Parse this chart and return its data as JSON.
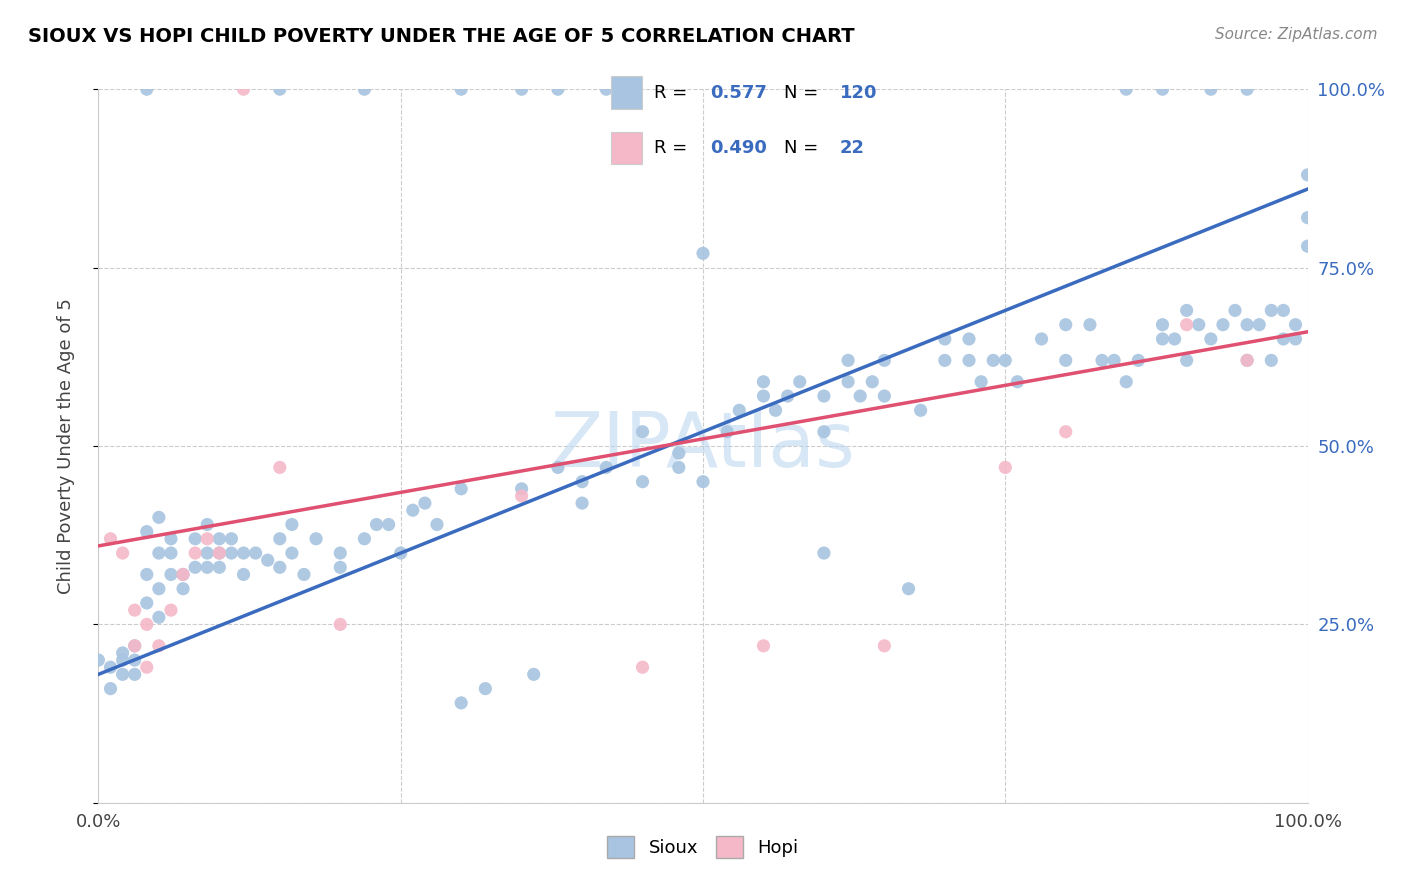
{
  "title": "SIOUX VS HOPI CHILD POVERTY UNDER THE AGE OF 5 CORRELATION CHART",
  "source": "Source: ZipAtlas.com",
  "ylabel": "Child Poverty Under the Age of 5",
  "xlim": [
    0,
    1
  ],
  "ylim": [
    0,
    1
  ],
  "xtick_vals": [
    0.0,
    0.25,
    0.5,
    0.75,
    1.0
  ],
  "ytick_vals": [
    0.0,
    0.25,
    0.5,
    0.75,
    1.0
  ],
  "xticklabels": [
    "0.0%",
    "",
    "",
    "",
    "100.0%"
  ],
  "yticklabels_right": [
    "",
    "25.0%",
    "50.0%",
    "75.0%",
    "100.0%"
  ],
  "sioux_color": "#a8c4e0",
  "hopi_color": "#f4b8c8",
  "sioux_line_color": "#3a6bbf",
  "hopi_line_color": "#e05070",
  "sioux_R": "0.577",
  "sioux_N": "120",
  "hopi_R": "0.490",
  "hopi_N": "22",
  "sioux_intercept": 0.18,
  "sioux_slope": 0.68,
  "hopi_intercept": 0.36,
  "hopi_slope": 0.3,
  "sioux_points": [
    [
      0.0,
      0.2
    ],
    [
      0.01,
      0.19
    ],
    [
      0.01,
      0.16
    ],
    [
      0.02,
      0.18
    ],
    [
      0.02,
      0.2
    ],
    [
      0.02,
      0.21
    ],
    [
      0.03,
      0.22
    ],
    [
      0.03,
      0.2
    ],
    [
      0.03,
      0.18
    ],
    [
      0.04,
      0.38
    ],
    [
      0.04,
      0.32
    ],
    [
      0.04,
      0.28
    ],
    [
      0.05,
      0.26
    ],
    [
      0.05,
      0.3
    ],
    [
      0.05,
      0.4
    ],
    [
      0.05,
      0.35
    ],
    [
      0.06,
      0.32
    ],
    [
      0.06,
      0.35
    ],
    [
      0.06,
      0.37
    ],
    [
      0.07,
      0.3
    ],
    [
      0.07,
      0.32
    ],
    [
      0.08,
      0.33
    ],
    [
      0.08,
      0.37
    ],
    [
      0.09,
      0.33
    ],
    [
      0.09,
      0.35
    ],
    [
      0.09,
      0.39
    ],
    [
      0.1,
      0.35
    ],
    [
      0.1,
      0.37
    ],
    [
      0.1,
      0.33
    ],
    [
      0.11,
      0.35
    ],
    [
      0.11,
      0.37
    ],
    [
      0.12,
      0.32
    ],
    [
      0.12,
      0.35
    ],
    [
      0.13,
      0.35
    ],
    [
      0.14,
      0.34
    ],
    [
      0.15,
      0.33
    ],
    [
      0.15,
      0.37
    ],
    [
      0.16,
      0.35
    ],
    [
      0.16,
      0.39
    ],
    [
      0.17,
      0.32
    ],
    [
      0.18,
      0.37
    ],
    [
      0.2,
      0.33
    ],
    [
      0.2,
      0.35
    ],
    [
      0.22,
      0.37
    ],
    [
      0.23,
      0.39
    ],
    [
      0.24,
      0.39
    ],
    [
      0.25,
      0.35
    ],
    [
      0.26,
      0.41
    ],
    [
      0.27,
      0.42
    ],
    [
      0.28,
      0.39
    ],
    [
      0.3,
      0.44
    ],
    [
      0.3,
      0.14
    ],
    [
      0.32,
      0.16
    ],
    [
      0.35,
      0.44
    ],
    [
      0.36,
      0.18
    ],
    [
      0.38,
      0.47
    ],
    [
      0.4,
      0.42
    ],
    [
      0.4,
      0.45
    ],
    [
      0.42,
      0.47
    ],
    [
      0.45,
      0.52
    ],
    [
      0.45,
      0.45
    ],
    [
      0.48,
      0.47
    ],
    [
      0.48,
      0.49
    ],
    [
      0.5,
      0.45
    ],
    [
      0.5,
      0.77
    ],
    [
      0.52,
      0.52
    ],
    [
      0.53,
      0.55
    ],
    [
      0.55,
      0.57
    ],
    [
      0.55,
      0.59
    ],
    [
      0.56,
      0.55
    ],
    [
      0.57,
      0.57
    ],
    [
      0.58,
      0.59
    ],
    [
      0.6,
      0.52
    ],
    [
      0.6,
      0.57
    ],
    [
      0.6,
      0.35
    ],
    [
      0.62,
      0.59
    ],
    [
      0.62,
      0.62
    ],
    [
      0.63,
      0.57
    ],
    [
      0.64,
      0.59
    ],
    [
      0.65,
      0.57
    ],
    [
      0.65,
      0.62
    ],
    [
      0.67,
      0.3
    ],
    [
      0.68,
      0.55
    ],
    [
      0.7,
      0.62
    ],
    [
      0.7,
      0.65
    ],
    [
      0.72,
      0.62
    ],
    [
      0.72,
      0.65
    ],
    [
      0.73,
      0.59
    ],
    [
      0.74,
      0.62
    ],
    [
      0.75,
      0.62
    ],
    [
      0.76,
      0.59
    ],
    [
      0.78,
      0.65
    ],
    [
      0.8,
      0.67
    ],
    [
      0.8,
      0.62
    ],
    [
      0.82,
      0.67
    ],
    [
      0.83,
      0.62
    ],
    [
      0.84,
      0.62
    ],
    [
      0.85,
      0.59
    ],
    [
      0.86,
      0.62
    ],
    [
      0.88,
      0.65
    ],
    [
      0.88,
      0.67
    ],
    [
      0.89,
      0.65
    ],
    [
      0.9,
      0.69
    ],
    [
      0.9,
      0.62
    ],
    [
      0.91,
      0.67
    ],
    [
      0.92,
      0.65
    ],
    [
      0.93,
      0.67
    ],
    [
      0.94,
      0.69
    ],
    [
      0.95,
      0.62
    ],
    [
      0.95,
      0.67
    ],
    [
      0.96,
      0.67
    ],
    [
      0.97,
      0.69
    ],
    [
      0.97,
      0.62
    ],
    [
      0.98,
      0.69
    ],
    [
      0.98,
      0.65
    ],
    [
      0.99,
      0.67
    ],
    [
      0.99,
      0.65
    ],
    [
      1.0,
      0.88
    ],
    [
      1.0,
      0.82
    ],
    [
      1.0,
      0.78
    ]
  ],
  "hopi_points": [
    [
      0.01,
      0.37
    ],
    [
      0.02,
      0.35
    ],
    [
      0.03,
      0.22
    ],
    [
      0.03,
      0.27
    ],
    [
      0.04,
      0.19
    ],
    [
      0.04,
      0.25
    ],
    [
      0.05,
      0.22
    ],
    [
      0.06,
      0.27
    ],
    [
      0.07,
      0.32
    ],
    [
      0.08,
      0.35
    ],
    [
      0.09,
      0.37
    ],
    [
      0.1,
      0.35
    ],
    [
      0.15,
      0.47
    ],
    [
      0.2,
      0.25
    ],
    [
      0.35,
      0.43
    ],
    [
      0.45,
      0.19
    ],
    [
      0.55,
      0.22
    ],
    [
      0.65,
      0.22
    ],
    [
      0.75,
      0.47
    ],
    [
      0.8,
      0.52
    ],
    [
      0.9,
      0.67
    ],
    [
      0.95,
      0.62
    ]
  ],
  "top_row_sioux": [
    [
      0.04,
      1.0
    ],
    [
      0.15,
      1.0
    ],
    [
      0.22,
      1.0
    ],
    [
      0.3,
      1.0
    ],
    [
      0.35,
      1.0
    ],
    [
      0.38,
      1.0
    ],
    [
      0.42,
      1.0
    ],
    [
      0.85,
      1.0
    ],
    [
      0.88,
      1.0
    ],
    [
      0.92,
      1.0
    ],
    [
      0.95,
      1.0
    ]
  ],
  "top_row_hopi": [
    [
      0.12,
      1.0
    ]
  ]
}
